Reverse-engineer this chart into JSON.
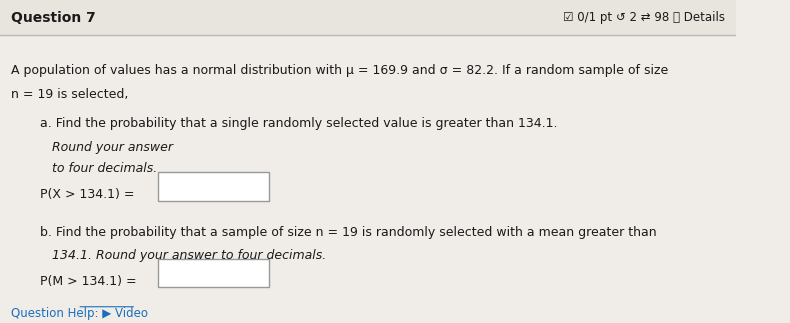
{
  "title": "Question 7",
  "header_right": "☑ 0/1 pt ↺ 2 ⇄ 98 ⓘ Details",
  "bg_color": "#f0ede8",
  "header_bg": "#e8e4de",
  "text_color": "#1a1a1a",
  "intro_line1": "A population of values has a normal distribution with μ = 169.9 and σ = 82.2. If a random sample of size",
  "intro_line2": "n = 19 is selected,",
  "part_a_title": "a. Find the probability that a single randomly selected value is greater than 134.1.",
  "part_a_italic": "Round your answer",
  "part_a_italic2": "to four decimals.",
  "part_a_label": "P(X > 134.1) =",
  "part_b_title": "b. Find the probability that a sample of size n = 19 is randomly selected with a mean greater than",
  "part_b_title2": "134.1.",
  "part_b_italic": "Round your answer to four decimals.",
  "part_b_label": "P(M > 134.1) =",
  "footer": "Question Help: ▶ Video",
  "box_color": "#ffffff",
  "box_border": "#999999"
}
